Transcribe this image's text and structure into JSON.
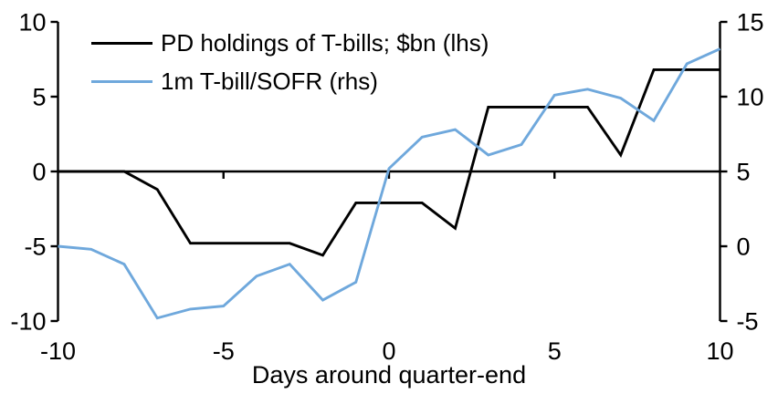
{
  "chart_data": {
    "type": "line",
    "title": "",
    "xlabel": "Days around quarter-end",
    "grid": false,
    "legend_position": "top-left",
    "x_range": [
      -10,
      10
    ],
    "x": [
      -10,
      -9,
      -8,
      -7,
      -6,
      -5,
      -4,
      -3,
      -2,
      -1,
      0,
      1,
      2,
      3,
      4,
      5,
      6,
      7,
      8,
      9,
      10
    ],
    "x_axis": {
      "ticks": [
        -10,
        -5,
        0,
        5,
        10
      ],
      "label": "Days around quarter-end"
    },
    "left_axis": {
      "ticks": [
        10,
        5,
        0,
        -5,
        -10
      ],
      "range": [
        -10,
        10
      ]
    },
    "right_axis": {
      "ticks": [
        15,
        10,
        5,
        0,
        -5
      ],
      "range": [
        -5,
        15
      ]
    },
    "zero_line": true,
    "series": [
      {
        "id": "pd-holdings-tbills",
        "name": "PD holdings of T-bills; $bn (lhs)",
        "axis": "left",
        "color": "#000000",
        "values": [
          0,
          0,
          0,
          -1.2,
          -4.8,
          -4.8,
          -4.8,
          -4.8,
          -5.6,
          -2.1,
          -2.1,
          -2.1,
          -3.8,
          4.3,
          4.3,
          4.3,
          4.3,
          1.1,
          6.8,
          6.8,
          6.8
        ]
      },
      {
        "id": "1m-tbill-sofr",
        "name": "1m T-bill/SOFR (rhs)",
        "axis": "right",
        "color": "#6FA8DC",
        "values": [
          0,
          -0.2,
          -1.2,
          -4.8,
          -4.2,
          -4.0,
          -2.0,
          -1.2,
          -3.6,
          -2.4,
          5.2,
          7.3,
          7.8,
          6.1,
          6.8,
          10.1,
          10.5,
          9.9,
          8.4,
          12.2,
          13.2
        ]
      }
    ]
  }
}
